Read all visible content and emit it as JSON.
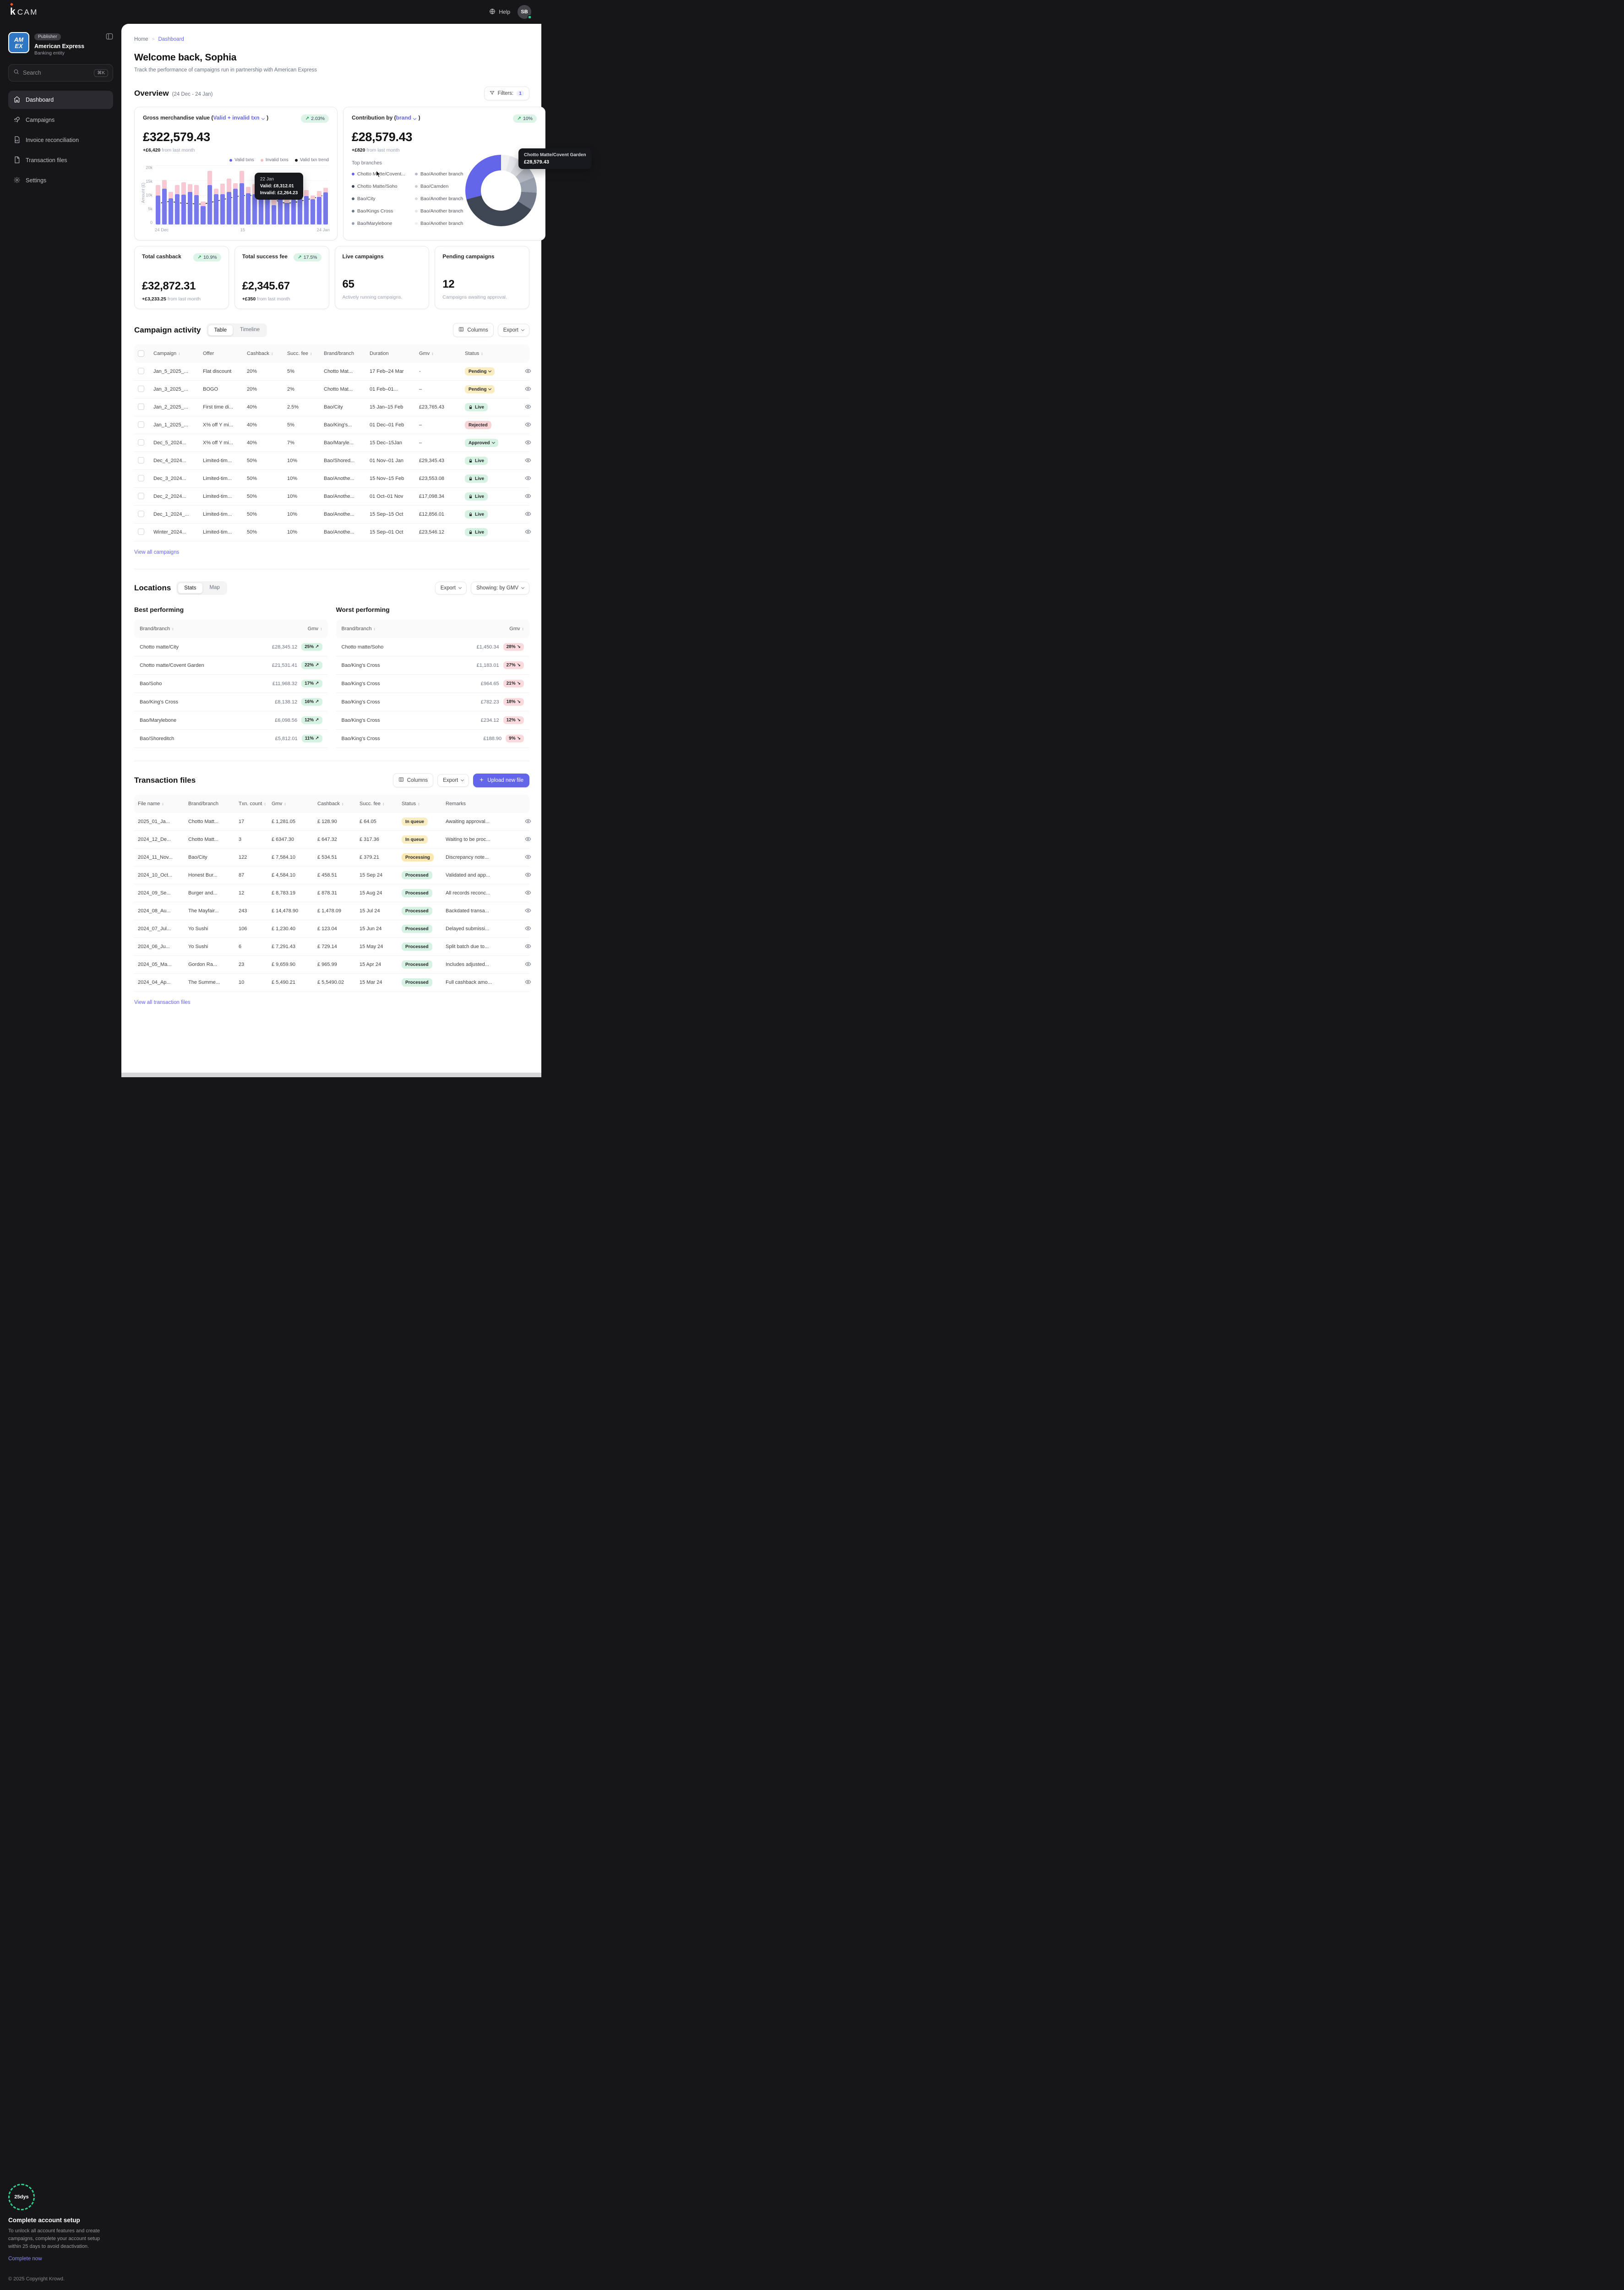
{
  "topbar": {
    "logo_mark": "k",
    "logo_text": "CAM",
    "help_label": "Help",
    "avatar_initials": "SB"
  },
  "sidebar": {
    "publisher_badge": "Publisher",
    "org_name": "American Express",
    "org_type": "Banking entity",
    "logo_line1": "AM",
    "logo_line2": "EX",
    "search": {
      "placeholder": "Search",
      "shortcut": "⌘K"
    },
    "items": [
      {
        "label": "Dashboard"
      },
      {
        "label": "Campaigns"
      },
      {
        "label": "Invoice reconciliation"
      },
      {
        "label": "Transaction files"
      },
      {
        "label": "Settings"
      }
    ],
    "setup": {
      "days_label": "25dys",
      "title": "Complete account setup",
      "body": "To unlock all account features and create campaigns, complete your account setup within 25 days to avoid deactivation.",
      "cta": "Complete now"
    },
    "copyright": "© 2025 Copyright Krowd."
  },
  "breadcrumb": {
    "home": "Home",
    "current": "Dashboard"
  },
  "page_header": {
    "title": "Welcome back, Sophia",
    "subtitle": "Track the performance of campaigns run in partnership with American Express"
  },
  "overview": {
    "title": "Overview",
    "date_range": "(24 Dec - 24 Jan)",
    "filters_label": "Filters:",
    "filters_count": "1",
    "gmv": {
      "label_prefix": "Gross merchandise value (",
      "label_link": "Valid + invalid txn",
      "label_suffix": " )",
      "change": "2.03%",
      "value": "£322,579.43",
      "note_strong": "+£6,420",
      "note_rest": " from last month",
      "y_axis_label": "Amount (£)",
      "y_ticks": [
        "20k",
        "15k",
        "10k",
        "5k",
        "0"
      ],
      "x_ticks": [
        "24 Dec",
        "15",
        "24 Jan"
      ],
      "legend": [
        {
          "label": "Valid txns",
          "color": "#6466e9"
        },
        {
          "label": "Invalid txns",
          "color": "#f6bac4"
        },
        {
          "label": "Valid txn trend",
          "color": "#17181c"
        }
      ],
      "tooltip": {
        "title": "22 Jan",
        "valid": "Valid: £8,312.01",
        "invalid": "Invalid: £2,264.23"
      }
    },
    "contribution": {
      "label_prefix": "Contribution by (",
      "label_link": "brand",
      "label_suffix": " )",
      "change": "10%",
      "value": "£28,579.43",
      "note_strong": "+£820",
      "note_rest": " from last month",
      "branches_title": "Top branches",
      "branches_left": [
        {
          "label": "Chotto Matte/Covent...",
          "dot": "#6466e9"
        },
        {
          "label": "Chotto Matte/Soho",
          "dot": "#3e4653"
        },
        {
          "label": "Bao/City",
          "dot": "#596273"
        },
        {
          "label": "Bao/Kings Cross",
          "dot": "#727a89"
        },
        {
          "label": "Bao/Marylebone",
          "dot": "#98a0ad"
        }
      ],
      "branches_right": [
        {
          "label": "Bao/Another branch",
          "dot": "#b6bac3"
        },
        {
          "label": "Bao/Camden",
          "dot": "#c9ccd3"
        },
        {
          "label": "Bao/Another branch",
          "dot": "#d8dade"
        },
        {
          "label": "Bao/Another branch",
          "dot": "#e4e5e9"
        },
        {
          "label": "Bao/Another branch",
          "dot": "#efeff2"
        }
      ],
      "tooltip": {
        "title": "Chotto Matte/Covent Garden",
        "value": "£28,579.43"
      }
    },
    "stats": [
      {
        "label": "Total cashback",
        "change": "10.9%",
        "pill_class": "shown",
        "value": "£32,872.31",
        "note_strong": "+£3,233.25",
        "note_rest": " from last month"
      },
      {
        "label": "Total success fee",
        "change": "17.5%",
        "pill_class": "shown",
        "value": "£2,345.67",
        "note_strong": "+£350",
        "note_rest": " from last month"
      },
      {
        "label": "Live campaigns",
        "change": "",
        "pill_class": "hidden",
        "value": "65",
        "note_strong": "",
        "note_rest": "Actively running campaigns."
      },
      {
        "label": "Pending campaigns",
        "change": "",
        "pill_class": "hidden",
        "value": "12",
        "note_strong": "",
        "note_rest": "Campaigns awaiting approval."
      }
    ]
  },
  "campaign_activity": {
    "title": "Campaign activity",
    "tabs": {
      "table": "Table",
      "timeline": "Timeline"
    },
    "columns_btn": "Columns",
    "export_btn": "Export",
    "headers": {
      "campaign": "Campaign",
      "offer": "Offer",
      "cashback": "Cashback",
      "succ_fee": "Succ. fee",
      "brand": "Brand/branch",
      "duration": "Duration",
      "gmv": "Gmv",
      "status": "Status"
    },
    "rows": [
      {
        "campaign": "Jan_5_2025_...",
        "offer": "Flat discount",
        "cashback": "20%",
        "succ_fee": "5%",
        "brand": "Chotto Mat...",
        "duration": "17 Feb–24 Mar",
        "gmv": "-",
        "status": "Pending",
        "status_variant": "pending"
      },
      {
        "campaign": "Jan_3_2025_...",
        "offer": "BOGO",
        "cashback": "20%",
        "succ_fee": "2%",
        "brand": "Chotto Mat...",
        "duration": "01 Feb–01...",
        "gmv": "–",
        "status": "Pending",
        "status_variant": "pending"
      },
      {
        "campaign": "Jan_2_2025_...",
        "offer": "First time di...",
        "cashback": "40%",
        "succ_fee": "2.5%",
        "brand": "Bao/City",
        "duration": "15 Jan–15 Feb",
        "gmv": "£23,765.43",
        "status": "Live",
        "status_variant": "live"
      },
      {
        "campaign": "Jan_1_2025_...",
        "offer": "X% off Y mi...",
        "cashback": "40%",
        "succ_fee": "5%",
        "brand": "Bao/King's...",
        "duration": "01 Dec–01 Feb",
        "gmv": "–",
        "status": "Rejected",
        "status_variant": "rejected"
      },
      {
        "campaign": "Dec_5_2024...",
        "offer": "X% off Y mi...",
        "cashback": "40%",
        "succ_fee": "7%",
        "brand": "Bao/Maryle...",
        "duration": "15 Dec–15Jan",
        "gmv": "–",
        "status": "Approved",
        "status_variant": "approved"
      },
      {
        "campaign": "Dec_4_2024...",
        "offer": "Limited-tim...",
        "cashback": "50%",
        "succ_fee": "10%",
        "brand": "Bao/Shored...",
        "duration": "01 Nov–01 Jan",
        "gmv": "£29,345.43",
        "status": "Live",
        "status_variant": "live"
      },
      {
        "campaign": "Dec_3_2024...",
        "offer": "Limited-tim...",
        "cashback": "50%",
        "succ_fee": "10%",
        "brand": "Bao/Anothe...",
        "duration": "15 Nov–15 Feb",
        "gmv": "£23,553.08",
        "status": "Live",
        "status_variant": "live"
      },
      {
        "campaign": "Dec_2_2024...",
        "offer": "Limited-tim...",
        "cashback": "50%",
        "succ_fee": "10%",
        "brand": "Bao/Anothe...",
        "duration": "01 Oct–01 Nov",
        "gmv": "£17,098.34",
        "status": "Live",
        "status_variant": "live"
      },
      {
        "campaign": "Dec_1_2024_...",
        "offer": "Limited-tim...",
        "cashback": "50%",
        "succ_fee": "10%",
        "brand": "Bao/Anothe...",
        "duration": "15 Sep–15 Oct",
        "gmv": "£12,856.01",
        "status": "Live",
        "status_variant": "live"
      },
      {
        "campaign": "Winter_2024...",
        "offer": "Limited-tim...",
        "cashback": "50%",
        "succ_fee": "10%",
        "brand": "Bao/Anothe...",
        "duration": "15 Sep–01 Oct",
        "gmv": "£23,546.12",
        "status": "Live",
        "status_variant": "live"
      }
    ],
    "view_all": "View all campaigns"
  },
  "locations": {
    "title": "Locations",
    "tabs": {
      "stats": "Stats",
      "map": "Map"
    },
    "export_btn": "Export",
    "showing_btn": "Showing: by GMV",
    "best": {
      "title": "Best performing",
      "headers": {
        "brand": "Brand/branch",
        "gmv": "Gmv"
      },
      "rows": [
        {
          "brand": "Chotto matte/City",
          "gmv": "£28,345.12",
          "pct": "25%",
          "arrow": "↗",
          "dir": "up"
        },
        {
          "brand": "Chotto matte/Covent Garden",
          "gmv": "£21,531.41",
          "pct": "22%",
          "arrow": "↗",
          "dir": "up"
        },
        {
          "brand": "Bao/Soho",
          "gmv": "£11,968.32",
          "pct": "17%",
          "arrow": "↗",
          "dir": "up"
        },
        {
          "brand": "Bao/King's Cross",
          "gmv": "£8,138.12",
          "pct": "16%",
          "arrow": "↗",
          "dir": "up"
        },
        {
          "brand": "Bao/Marylebone",
          "gmv": "£6,098.56",
          "pct": "12%",
          "arrow": "↗",
          "dir": "up"
        },
        {
          "brand": "Bao/Shoreditch",
          "gmv": "£5,812.01",
          "pct": "11%",
          "arrow": "↗",
          "dir": "up"
        }
      ]
    },
    "worst": {
      "title": "Worst performing",
      "headers": {
        "brand": "Brand/branch",
        "gmv": "Gmv"
      },
      "rows": [
        {
          "brand": "Chotto matte/Soho",
          "gmv": "£1,450.34",
          "pct": "28%",
          "arrow": "↘",
          "dir": "down"
        },
        {
          "brand": "Bao/King's Cross",
          "gmv": "£1,183.01",
          "pct": "27%",
          "arrow": "↘",
          "dir": "down"
        },
        {
          "brand": "Bao/King's Cross",
          "gmv": "£964.65",
          "pct": "21%",
          "arrow": "↘",
          "dir": "down"
        },
        {
          "brand": "Bao/King's Cross",
          "gmv": "£782.23",
          "pct": "18%",
          "arrow": "↘",
          "dir": "down"
        },
        {
          "brand": "Bao/King's Cross",
          "gmv": "£234.12",
          "pct": "12%",
          "arrow": "↘",
          "dir": "down"
        },
        {
          "brand": "Bao/King's Cross",
          "gmv": "£188.90",
          "pct": "9%",
          "arrow": "↘",
          "dir": "down"
        }
      ]
    }
  },
  "transaction_files": {
    "title": "Transaction files",
    "columns_btn": "Columns",
    "export_btn": "Export",
    "upload_btn": "Upload new file",
    "headers": {
      "file": "File name",
      "brand": "Brand/branch",
      "txn": "Txn. count",
      "gmv": "Gmv",
      "cashback": "Cashback",
      "succ_fee": "Succ. fee",
      "status": "Status",
      "remarks": "Remarks"
    },
    "rows": [
      {
        "file": "2025_01_Ja...",
        "brand": "Chotto Matt...",
        "txn": "17",
        "gmv": "£ 1,281.05",
        "cashback": "£ 128.90",
        "succ_fee": "£ 64.05",
        "status": "In queue",
        "status_variant": "inqueue",
        "remarks": "Awaiting approval..."
      },
      {
        "file": "2024_12_De...",
        "brand": "Chotto Matt...",
        "txn": "3",
        "gmv": "£ 6347.30",
        "cashback": "£ 647.32",
        "succ_fee": "£ 317.36",
        "status": "In queue",
        "status_variant": "inqueue",
        "remarks": "Waiting to be proc..."
      },
      {
        "file": "2024_11_Nov...",
        "brand": "Bao/City",
        "txn": "122",
        "gmv": "£ 7,584.10",
        "cashback": "£ 534.51",
        "succ_fee": "£ 379.21",
        "status": "Processing",
        "status_variant": "processing",
        "remarks": "Discrepancy note..."
      },
      {
        "file": "2024_10_Oct...",
        "brand": "Honest Bur...",
        "txn": "87",
        "gmv": "£ 4,584.10",
        "cashback": "£ 458.51",
        "succ_fee": "15 Sep 24",
        "status": "Processed",
        "status_variant": "processed",
        "remarks": "Validated and app..."
      },
      {
        "file": "2024_09_Se...",
        "brand": "Burger and...",
        "txn": "12",
        "gmv": "£ 8,783.19",
        "cashback": "£ 878.31",
        "succ_fee": "15 Aug 24",
        "status": "Processed",
        "status_variant": "processed",
        "remarks": "All records reconc..."
      },
      {
        "file": "2024_08_Au...",
        "brand": "The Mayfair...",
        "txn": "243",
        "gmv": "£ 14,478.90",
        "cashback": "£ 1,478.09",
        "succ_fee": "15 Jul 24",
        "status": "Processed",
        "status_variant": "processed",
        "remarks": "Backdated transa..."
      },
      {
        "file": "2024_07_Jul...",
        "brand": "Yo Sushi",
        "txn": "106",
        "gmv": "£ 1,230.40",
        "cashback": "£ 123.04",
        "succ_fee": "15 Jun 24",
        "status": "Processed",
        "status_variant": "processed",
        "remarks": "Delayed submissi..."
      },
      {
        "file": "2024_06_Ju...",
        "brand": "Yo Sushi",
        "txn": "6",
        "gmv": "£ 7,291.43",
        "cashback": "£ 729.14",
        "succ_fee": "15 May 24",
        "status": "Processed",
        "status_variant": "processed",
        "remarks": "Split batch due to..."
      },
      {
        "file": "2024_05_Ma...",
        "brand": "Gordon Ra...",
        "txn": "23",
        "gmv": "£ 9,659.90",
        "cashback": "£ 965.99",
        "succ_fee": "15 Apr 24",
        "status": "Processed",
        "status_variant": "processed",
        "remarks": "Includes adjusted..."
      },
      {
        "file": "2024_04_Ap...",
        "brand": "The Summe...",
        "txn": "10",
        "gmv": "£ 5,490.21",
        "cashback": "£ 5,5490.02",
        "succ_fee": "15 Mar 24",
        "status": "Processed",
        "status_variant": "processed",
        "remarks": "Full cashback amo..."
      }
    ],
    "view_all": "View all transaction files"
  },
  "chart_data": [
    {
      "type": "bar",
      "title": "Gross merchandise value (Valid + invalid txn)",
      "xlabel": "",
      "ylabel": "Amount (£)",
      "ylim": [
        0,
        20000
      ],
      "x_ticks": [
        "24 Dec",
        "15",
        "24 Jan"
      ],
      "grid": true,
      "legend_position": "top-right",
      "series": [
        {
          "name": "Valid txns",
          "kind": "bar-stack-bottom",
          "color": "#7678ec",
          "values": [
            9700,
            12000,
            8800,
            10200,
            10000,
            11000,
            9800,
            6200,
            13200,
            10200,
            10100,
            11000,
            12000,
            13800,
            10400,
            10100,
            8700,
            9700,
            6500,
            9400,
            7200,
            8300,
            9300,
            9500,
            8400,
            9200,
            10800
          ]
        },
        {
          "name": "Invalid txns",
          "kind": "bar-stack-top",
          "color": "#f8c9d2",
          "values": [
            3500,
            3000,
            2200,
            3000,
            4200,
            2500,
            3500,
            1500,
            4800,
            1800,
            3600,
            4400,
            1800,
            4200,
            2200,
            3500,
            3500,
            2500,
            2500,
            2000,
            1500,
            2300,
            1500,
            2000,
            1300,
            2100,
            1500
          ]
        },
        {
          "name": "Valid txn trend",
          "kind": "line-dashed",
          "color": "#1f2430",
          "values": [
            7000,
            7800,
            7800,
            7500,
            7200,
            7200,
            7000,
            7000,
            7500,
            8000,
            8500,
            9000,
            9500,
            9800,
            10000,
            9700,
            10000,
            9900,
            8500,
            7500,
            7300,
            7500,
            8000,
            8500,
            9000,
            9500,
            10500
          ]
        }
      ]
    },
    {
      "type": "donut",
      "title": "Contribution by brand",
      "center_total": "£28,579.43",
      "slices": [
        {
          "label": "Bao/Another branch",
          "value": 4,
          "color": "#f0f0f3"
        },
        {
          "label": "Bao/Another branch",
          "value": 4,
          "color": "#e5e6ea"
        },
        {
          "label": "Bao/Camden",
          "value": 5,
          "color": "#d6d8dd"
        },
        {
          "label": "Bao/Marylebone",
          "value": 6,
          "color": "#b4b8c1"
        },
        {
          "label": "Bao/Kings Cross",
          "value": 7,
          "color": "#98a0ad"
        },
        {
          "label": "Bao/City",
          "value": 8,
          "color": "#727a89"
        },
        {
          "label": "Chotto Matte/Soho",
          "value": 37,
          "color": "#3e4653"
        },
        {
          "label": "Chotto Matte/Covent Garden",
          "value": 29,
          "color": "#6466e9"
        }
      ]
    }
  ]
}
